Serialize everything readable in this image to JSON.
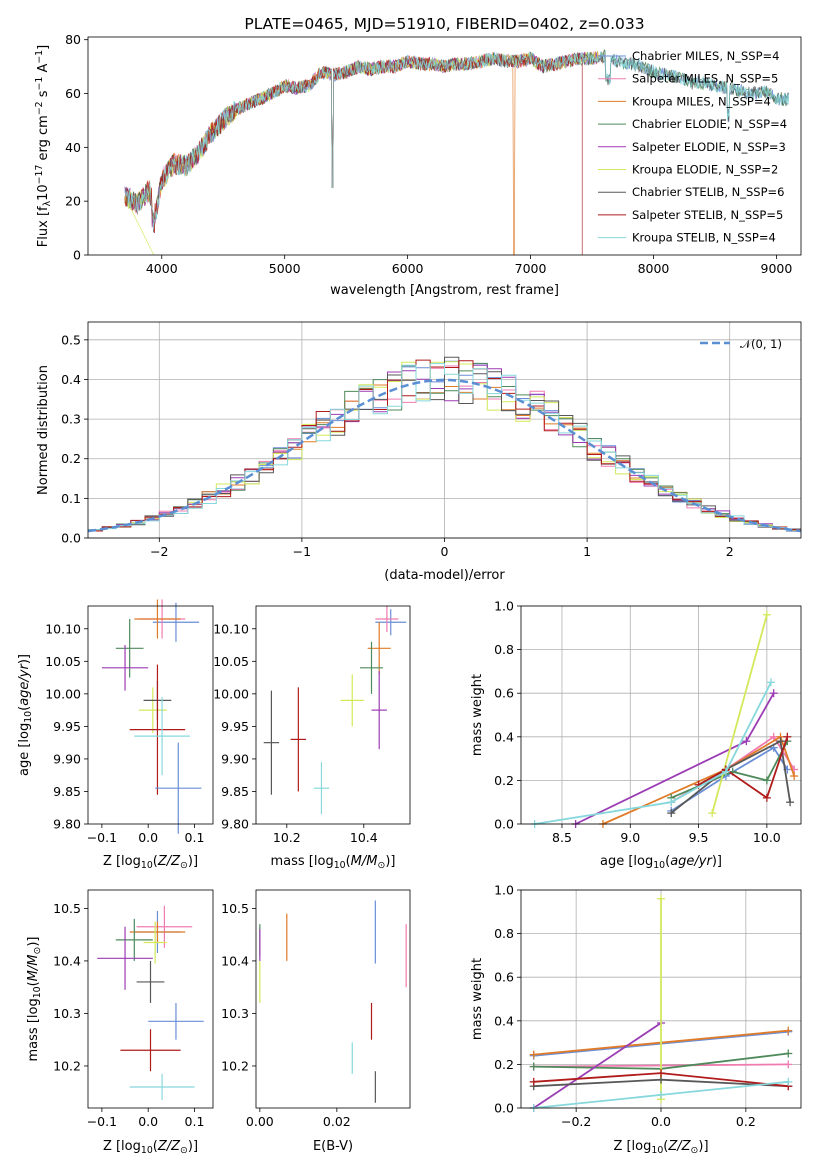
{
  "colors": [
    "#6a8ed6",
    "#f07bb0",
    "#e07b28",
    "#4f8a5b",
    "#9b3cb4",
    "#d4e85a",
    "#585858",
    "#b01c1c",
    "#86d8dc"
  ],
  "chart_data": [
    {
      "id": "spectrum",
      "type": "line",
      "title": "PLATE=0465, MJD=51910, FIBERID=0402, z=0.033",
      "xlabel": "wavelength [Angstrom, rest frame]",
      "ylabel": "Flux [f_λ 10^-17 erg cm^-2 s^-1 A^-1]",
      "xlim": [
        3400,
        9200
      ],
      "ylim": [
        0,
        81
      ],
      "xticks": [
        4000,
        5000,
        6000,
        7000,
        8000,
        9000
      ],
      "yticks": [
        0,
        20,
        40,
        60,
        80
      ],
      "grid": false,
      "legend_position": "right",
      "series": [
        {
          "name": "Chabrier MILES, N_SSP=4"
        },
        {
          "name": "Salpeter MILES, N_SSP=5"
        },
        {
          "name": "Kroupa MILES, N_SSP=4"
        },
        {
          "name": "Chabrier ELODIE, N_SSP=4"
        },
        {
          "name": "Salpeter ELODIE, N_SSP=3"
        },
        {
          "name": "Kroupa ELODIE, N_SSP=2"
        },
        {
          "name": "Chabrier STELIB, N_SSP=6"
        },
        {
          "name": "Salpeter STELIB, N_SSP=5"
        },
        {
          "name": "Kroupa STELIB, N_SSP=4"
        }
      ],
      "continuum": {
        "x": [
          3700,
          3800,
          3900,
          3950,
          4000,
          4100,
          4200,
          4300,
          4400,
          4500,
          4600,
          4700,
          4800,
          4900,
          5000,
          5100,
          5200,
          5300,
          5400,
          5500,
          5600,
          5700,
          5800,
          5900,
          6000,
          6100,
          6200,
          6300,
          6400,
          6500,
          6600,
          6700,
          6800,
          6900,
          7000,
          7100,
          7200,
          7300,
          7400,
          7500,
          7600,
          7700,
          7800,
          7900,
          8000,
          8100,
          8200,
          8300,
          8400,
          8500,
          8600,
          8700,
          8800,
          8900,
          9000,
          9100
        ],
        "y": [
          22,
          19,
          24,
          15,
          28,
          34,
          33,
          38,
          45,
          50,
          54,
          56,
          58,
          60,
          63,
          62,
          63,
          68,
          67,
          68,
          70,
          69,
          70,
          70,
          72,
          71,
          71,
          70,
          71,
          71,
          72,
          73,
          72,
          72,
          73,
          70,
          71,
          72,
          73,
          73,
          74,
          72,
          71,
          70,
          68,
          67,
          66,
          64,
          64,
          63,
          62,
          61,
          60,
          61,
          58,
          58
        ]
      }
    },
    {
      "id": "residuals",
      "type": "line",
      "xlabel": "(data-model)/error",
      "ylabel": "Normed distribution",
      "xlim": [
        -2.5,
        2.5
      ],
      "ylim": [
        0,
        0.545
      ],
      "xticks": [
        -2,
        -1,
        0,
        1,
        2
      ],
      "yticks": [
        0.0,
        0.1,
        0.2,
        0.3,
        0.4,
        0.5
      ],
      "grid": true,
      "legend": "𝒩(0, 1)",
      "legend_position": "top-right"
    },
    {
      "id": "age-z",
      "type": "scatter",
      "xlabel": "Z [log10(Z/Z⊙)]",
      "ylabel": "age  [log10(age/yr)]",
      "xlim": [
        -0.13,
        0.14
      ],
      "ylim": [
        9.8,
        10.135
      ],
      "xticks": [
        -0.1,
        0.0,
        0.1
      ],
      "yticks": [
        9.8,
        9.85,
        9.9,
        9.95,
        10.0,
        10.05,
        10.1
      ],
      "points": [
        {
          "x": 0.06,
          "y": 10.11,
          "xerr": 0.05,
          "yerr": 0.03
        },
        {
          "x": 0.03,
          "y": 10.115,
          "xerr": 0.05,
          "yerr": 0.03
        },
        {
          "x": 0.02,
          "y": 10.115,
          "xerr": 0.05,
          "yerr": 0.03
        },
        {
          "x": -0.04,
          "y": 10.07,
          "xerr": 0.03,
          "yerr": 0.045
        },
        {
          "x": -0.05,
          "y": 10.04,
          "xerr": 0.05,
          "yerr": 0.035
        },
        {
          "x": 0.01,
          "y": 9.975,
          "xerr": 0.03,
          "yerr": 0.035
        },
        {
          "x": 0.02,
          "y": 9.99,
          "xerr": 0.03,
          "yerr": 0.03
        },
        {
          "x": 0.02,
          "y": 9.945,
          "xerr": 0.06,
          "yerr": 0.1
        },
        {
          "x": 0.03,
          "y": 9.935,
          "xerr": 0.06,
          "yerr": 0.06
        },
        {
          "x": 0.065,
          "y": 9.855,
          "xerr": 0.05,
          "yerr": 0.07
        }
      ]
    },
    {
      "id": "age-mass",
      "type": "scatter",
      "xlabel": "mass [log10(M/M⊙)]",
      "xlim": [
        10.12,
        10.52
      ],
      "ylim": [
        9.8,
        10.135
      ],
      "xticks": [
        10.2,
        10.4
      ],
      "yticks": [
        9.8,
        9.85,
        9.9,
        9.95,
        10.0,
        10.05,
        10.1
      ],
      "points": [
        {
          "x": 10.47,
          "y": 10.11,
          "xerr": 0.04,
          "yerr": 0.02
        },
        {
          "x": 10.46,
          "y": 10.115,
          "xerr": 0.03,
          "yerr": 0.02
        },
        {
          "x": 10.44,
          "y": 10.07,
          "xerr": 0.03,
          "yerr": 0.04
        },
        {
          "x": 10.42,
          "y": 10.04,
          "xerr": 0.03,
          "yerr": 0.04
        },
        {
          "x": 10.44,
          "y": 9.975,
          "xerr": 0.02,
          "yerr": 0.06
        },
        {
          "x": 10.37,
          "y": 9.99,
          "xerr": 0.03,
          "yerr": 0.04
        },
        {
          "x": 10.16,
          "y": 9.925,
          "xerr": 0.02,
          "yerr": 0.08
        },
        {
          "x": 10.23,
          "y": 9.93,
          "xerr": 0.02,
          "yerr": 0.08
        },
        {
          "x": 10.29,
          "y": 9.855,
          "xerr": 0.02,
          "yerr": 0.04
        }
      ]
    },
    {
      "id": "weight-age",
      "type": "line",
      "xlabel": "age  [log10(age/yr)]",
      "ylabel": "mass weight",
      "xlim": [
        8.2,
        10.25
      ],
      "ylim": [
        0,
        1.0
      ],
      "xticks": [
        8.5,
        9.0,
        9.5,
        10.0
      ],
      "yticks": [
        0.0,
        0.2,
        0.4,
        0.6,
        0.8,
        1.0
      ],
      "grid": true,
      "series": [
        {
          "x": [
            9.3,
            9.7,
            10.05,
            10.15
          ],
          "y": [
            0.06,
            0.22,
            0.35,
            0.25
          ]
        },
        {
          "x": [
            9.3,
            9.7,
            10.05,
            10.2
          ],
          "y": [
            0.1,
            0.25,
            0.4,
            0.25
          ]
        },
        {
          "x": [
            8.8,
            9.7,
            10.1,
            10.2
          ],
          "y": [
            0.0,
            0.25,
            0.4,
            0.22
          ]
        },
        {
          "x": [
            9.3,
            9.75,
            10.0,
            10.15
          ],
          "y": [
            0.12,
            0.24,
            0.2,
            0.38
          ]
        },
        {
          "x": [
            8.6,
            9.85,
            10.05
          ],
          "y": [
            0.0,
            0.38,
            0.6
          ]
        },
        {
          "x": [
            9.6,
            10.0
          ],
          "y": [
            0.05,
            0.96
          ]
        },
        {
          "x": [
            9.3,
            9.7,
            10.1,
            10.17
          ],
          "y": [
            0.05,
            0.25,
            0.38,
            0.1
          ]
        },
        {
          "x": [
            9.5,
            9.7,
            10.0,
            10.15
          ],
          "y": [
            0.18,
            0.25,
            0.12,
            0.4
          ]
        },
        {
          "x": [
            8.3,
            9.3,
            9.7,
            10.03
          ],
          "y": [
            0.0,
            0.1,
            0.24,
            0.65
          ]
        }
      ]
    },
    {
      "id": "mass-z",
      "type": "scatter",
      "xlabel": "Z [log10(Z/Z⊙)]",
      "ylabel": "mass [log10(M/M⊙)]",
      "xlim": [
        -0.13,
        0.14
      ],
      "ylim": [
        10.12,
        10.535
      ],
      "xticks": [
        -0.1,
        0.0,
        0.1
      ],
      "yticks": [
        10.2,
        10.3,
        10.4,
        10.5
      ],
      "points": [
        {
          "x": 0.02,
          "y": 10.455,
          "xerr": 0.05,
          "yerr": 0.04
        },
        {
          "x": 0.035,
          "y": 10.465,
          "xerr": 0.06,
          "yerr": 0.04
        },
        {
          "x": 0.02,
          "y": 10.455,
          "xerr": 0.06,
          "yerr": 0.02
        },
        {
          "x": -0.03,
          "y": 10.44,
          "xerr": 0.04,
          "yerr": 0.04
        },
        {
          "x": -0.05,
          "y": 10.405,
          "xerr": 0.06,
          "yerr": 0.06
        },
        {
          "x": 0.015,
          "y": 10.435,
          "xerr": 0.025,
          "yerr": 0.04
        },
        {
          "x": 0.005,
          "y": 10.36,
          "xerr": 0.03,
          "yerr": 0.04
        },
        {
          "x": 0.005,
          "y": 10.23,
          "xerr": 0.065,
          "yerr": 0.04
        },
        {
          "x": 0.03,
          "y": 10.16,
          "xerr": 0.07,
          "yerr": 0.025
        },
        {
          "x": 0.06,
          "y": 10.285,
          "xerr": 0.06,
          "yerr": 0.035
        }
      ]
    },
    {
      "id": "mass-ebv",
      "type": "scatter",
      "xlabel": "E(B-V)",
      "xlim": [
        -0.001,
        0.039
      ],
      "ylim": [
        10.12,
        10.535
      ],
      "xticks": [
        0.0,
        0.02
      ],
      "yticks": [
        10.2,
        10.3,
        10.4,
        10.5
      ],
      "points": [
        {
          "x": 0.03,
          "y": 10.455,
          "yerr": 0.06
        },
        {
          "x": 0.038,
          "y": 10.41,
          "yerr": 0.06
        },
        {
          "x": 0.007,
          "y": 10.445,
          "yerr": 0.045
        },
        {
          "x": 0.0,
          "y": 10.44,
          "yerr": 0.03
        },
        {
          "x": 0.0,
          "y": 10.43,
          "yerr": 0.03
        },
        {
          "x": 0.0,
          "y": 10.36,
          "yerr": 0.04
        },
        {
          "x": 0.03,
          "y": 10.16,
          "yerr": 0.03
        },
        {
          "x": 0.029,
          "y": 10.285,
          "yerr": 0.035
        },
        {
          "x": 0.024,
          "y": 10.215,
          "yerr": 0.03
        }
      ]
    },
    {
      "id": "weight-z",
      "type": "line",
      "xlabel": "Z [log10(Z/Z⊙)]",
      "ylabel": "mass weight",
      "xlim": [
        -0.33,
        0.33
      ],
      "ylim": [
        0,
        1.0
      ],
      "xticks": [
        -0.2,
        0.0,
        0.2
      ],
      "yticks": [
        0.0,
        0.2,
        0.4,
        0.6,
        0.8,
        1.0
      ],
      "grid": true,
      "series": [
        {
          "x": [
            -0.3,
            0.3
          ],
          "y": [
            0.24,
            0.35
          ]
        },
        {
          "x": [
            -0.3,
            0.3
          ],
          "y": [
            0.19,
            0.2
          ]
        },
        {
          "x": [
            -0.3,
            0.3
          ],
          "y": [
            0.245,
            0.355
          ]
        },
        {
          "x": [
            -0.3,
            0.0,
            0.3
          ],
          "y": [
            0.19,
            0.18,
            0.25
          ]
        },
        {
          "x": [
            -0.3,
            0.0
          ],
          "y": [
            0.0,
            0.39
          ]
        },
        {
          "x": [
            0.0,
            0.0
          ],
          "y": [
            0.04,
            0.96
          ]
        },
        {
          "x": [
            -0.3,
            0.0,
            0.3
          ],
          "y": [
            0.1,
            0.13,
            0.1
          ]
        },
        {
          "x": [
            -0.3,
            0.0,
            0.3
          ],
          "y": [
            0.12,
            0.16,
            0.1
          ]
        },
        {
          "x": [
            -0.3,
            0.0,
            0.3
          ],
          "y": [
            0.0,
            0.06,
            0.12
          ]
        }
      ]
    }
  ]
}
